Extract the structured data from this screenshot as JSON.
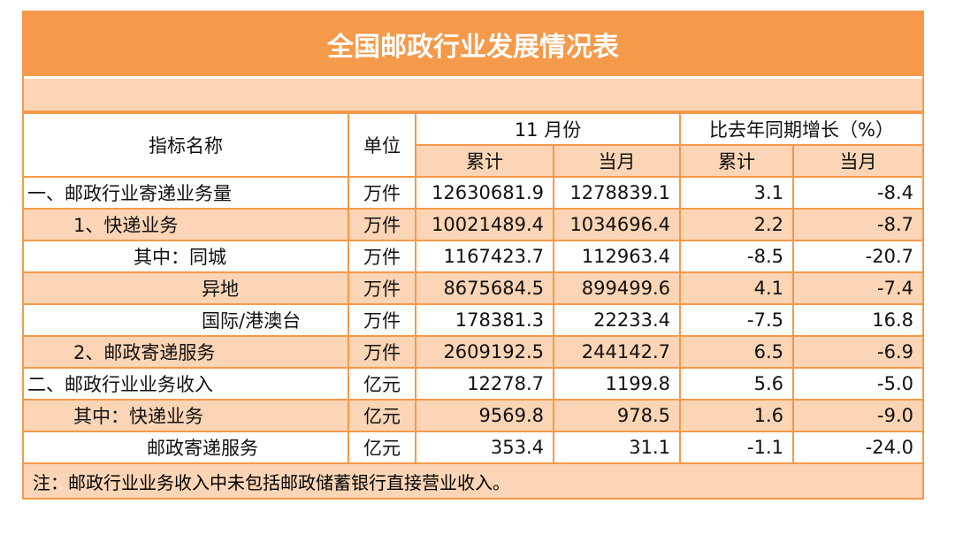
{
  "title": "全国邮政行业发展情况表",
  "header": {
    "name": "指标名称",
    "unit": "单位",
    "month_group": "11 月份",
    "growth_group": "比去年同期增长（%）",
    "cumulative": "累计",
    "current_month": "当月"
  },
  "rows": [
    {
      "name": "一、邮政行业寄递业务量",
      "indent": 0,
      "unit": "万件",
      "v": [
        "12630681.9",
        "1278839.1",
        "3.1",
        "-8.4"
      ]
    },
    {
      "name": "1、快递业务",
      "indent": 1,
      "unit": "万件",
      "v": [
        "10021489.4",
        "1034696.4",
        "2.2",
        "-8.7"
      ]
    },
    {
      "name": "其中：同城",
      "indent": 2,
      "unit": "万件",
      "v": [
        "1167423.7",
        "112963.4",
        "-8.5",
        "-20.7"
      ]
    },
    {
      "name": "异地",
      "indent": 3,
      "unit": "万件",
      "v": [
        "8675684.5",
        "899499.6",
        "4.1",
        "-7.4"
      ]
    },
    {
      "name": "国际/港澳台",
      "indent": 3,
      "unit": "万件",
      "v": [
        "178381.3",
        "22233.4",
        "-7.5",
        "16.8"
      ]
    },
    {
      "name": "2、邮政寄递服务",
      "indent": 1,
      "unit": "万件",
      "v": [
        "2609192.5",
        "244142.7",
        "6.5",
        "-6.9"
      ]
    },
    {
      "name": "二、邮政行业业务收入",
      "indent": 0,
      "unit": "亿元",
      "v": [
        "12278.7",
        "1199.8",
        "5.6",
        "-5.0"
      ]
    },
    {
      "name": "其中：快递业务",
      "indent": 1,
      "unit": "亿元",
      "v": [
        "9569.8",
        "978.5",
        "1.6",
        "-9.0"
      ]
    },
    {
      "name": "邮政寄递服务",
      "indent": 4,
      "unit": "亿元",
      "v": [
        "353.4",
        "31.1",
        "-1.1",
        "-24.0"
      ]
    }
  ],
  "note": "注：邮政行业业务收入中未包括邮政储蓄银行直接营业收入。",
  "colors": {
    "orange": "#f5994a",
    "peach": "#fbd5b5"
  }
}
